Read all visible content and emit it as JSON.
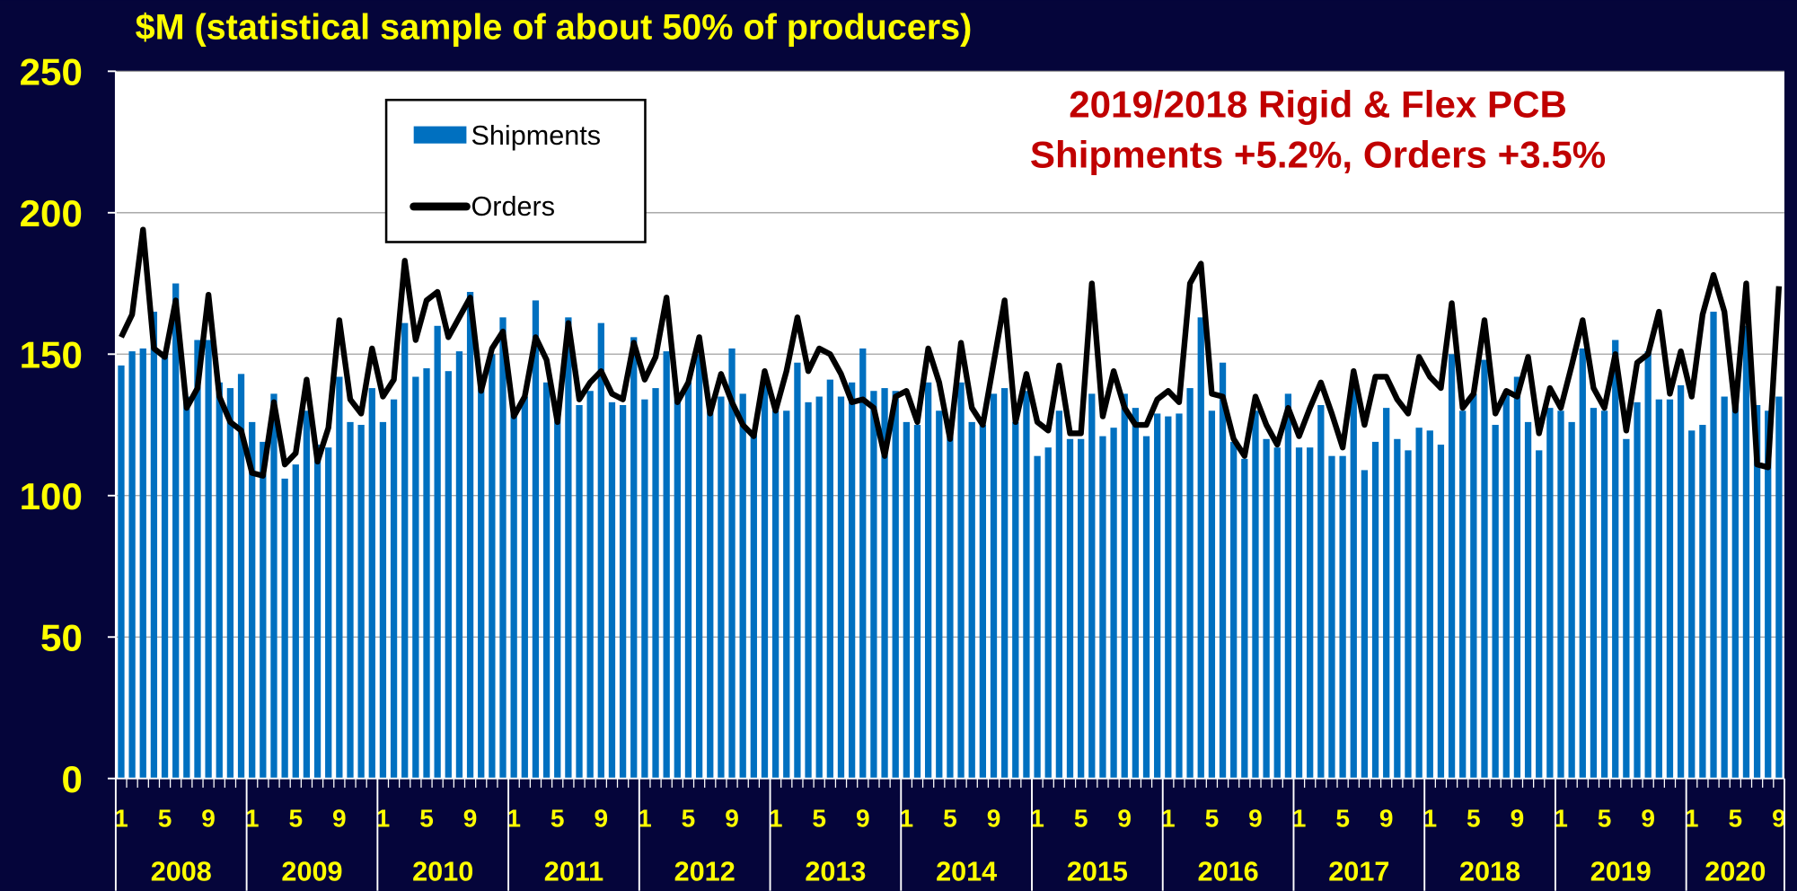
{
  "chart_data": {
    "type": "bar_line",
    "title": "$M (statistical sample of about 50% of producers)",
    "annotation": [
      "2019/2018 Rigid & Flex PCB",
      "Shipments +5.2%, Orders +3.5%"
    ],
    "categories": [
      "1",
      null,
      null,
      null,
      "5",
      null,
      null,
      null,
      "9",
      null,
      null,
      null,
      "1",
      null,
      null,
      null,
      "5",
      null,
      null,
      null,
      "9",
      null,
      null,
      null,
      "1",
      null,
      null,
      null,
      "5",
      null,
      null,
      null,
      "9",
      null,
      null,
      null,
      "1",
      null,
      null,
      null,
      "5",
      null,
      null,
      null,
      "9",
      null,
      null,
      null,
      "1",
      null,
      null,
      null,
      "5",
      null,
      null,
      null,
      "9",
      null,
      null,
      null,
      "1",
      null,
      null,
      null,
      "5",
      null,
      null,
      null,
      "9",
      null,
      null,
      null,
      "1",
      null,
      null,
      null,
      "5",
      null,
      null,
      null,
      "9",
      null,
      null,
      null,
      "1",
      null,
      null,
      null,
      "5",
      null,
      null,
      null,
      "9",
      null,
      null,
      null,
      "1",
      null,
      null,
      null,
      "5",
      null,
      null,
      null,
      "9",
      null,
      null,
      null,
      "1",
      null,
      null,
      null,
      "5",
      null,
      null,
      null,
      "9",
      null,
      null,
      null,
      "1",
      null,
      null,
      null,
      "5",
      null,
      null,
      null,
      "9",
      null,
      null,
      null,
      "1",
      null,
      null,
      null,
      "5",
      null,
      null,
      null,
      "9",
      null,
      null,
      null,
      "1",
      null,
      null,
      null,
      "5",
      null,
      null,
      null,
      "9"
    ],
    "years": [
      "2008",
      "2009",
      "2010",
      "2011",
      "2012",
      "2013",
      "2014",
      "2015",
      "2016",
      "2017",
      "2018",
      "2019",
      "2020"
    ],
    "series": [
      {
        "name": "Shipments",
        "kind": "bar",
        "color": "#0070c0",
        "values": [
          146,
          151,
          152,
          165,
          150,
          175,
          135,
          155,
          155,
          140,
          138,
          143,
          126,
          119,
          136,
          106,
          111,
          130,
          118,
          117,
          142,
          126,
          125,
          138,
          126,
          134,
          161,
          142,
          145,
          160,
          144,
          151,
          172,
          142,
          150,
          163,
          130,
          135,
          169,
          140,
          132,
          163,
          132,
          137,
          161,
          133,
          132,
          156,
          134,
          138,
          151,
          134,
          140,
          150,
          130,
          135,
          152,
          136,
          123,
          140,
          130,
          130,
          147,
          133,
          135,
          141,
          135,
          140,
          152,
          137,
          138,
          137,
          126,
          125,
          140,
          130,
          122,
          140,
          126,
          125,
          136,
          138,
          126,
          137,
          114,
          117,
          130,
          120,
          120,
          136,
          121,
          124,
          136,
          131,
          121,
          129,
          128,
          129,
          138,
          163,
          130,
          147,
          119,
          113,
          130,
          120,
          117,
          136,
          117,
          117,
          132,
          114,
          114,
          138,
          109,
          119,
          131,
          120,
          116,
          124,
          123,
          118,
          150,
          130,
          136,
          148,
          125,
          136,
          142,
          126,
          116,
          131,
          130,
          126,
          152,
          131,
          130,
          155,
          120,
          133,
          151,
          134,
          134,
          139,
          123,
          125,
          165,
          135,
          132,
          160,
          132,
          130,
          135
        ]
      },
      {
        "name": "Orders",
        "kind": "line",
        "color": "#000000",
        "values": [
          156,
          164,
          194,
          152,
          149,
          169,
          131,
          138,
          171,
          135,
          126,
          123,
          108,
          107,
          133,
          111,
          115,
          141,
          112,
          124,
          162,
          134,
          129,
          152,
          135,
          141,
          183,
          155,
          169,
          172,
          156,
          163,
          170,
          137,
          152,
          158,
          128,
          135,
          156,
          148,
          126,
          161,
          134,
          140,
          144,
          136,
          134,
          154,
          141,
          149,
          170,
          133,
          140,
          156,
          129,
          143,
          133,
          125,
          121,
          144,
          130,
          144,
          163,
          144,
          152,
          150,
          143,
          133,
          134,
          131,
          114,
          135,
          137,
          126,
          152,
          140,
          120,
          154,
          131,
          125,
          147,
          169,
          126,
          143,
          126,
          123,
          146,
          122,
          122,
          175,
          128,
          144,
          131,
          125,
          125,
          134,
          137,
          133,
          175,
          182,
          136,
          135,
          120,
          114,
          135,
          125,
          118,
          131,
          121,
          131,
          140,
          129,
          117,
          144,
          125,
          142,
          142,
          134,
          129,
          149,
          142,
          138,
          168,
          131,
          136,
          162,
          129,
          137,
          135,
          149,
          122,
          138,
          131,
          146,
          162,
          138,
          131,
          150,
          123,
          147,
          150,
          165,
          136,
          151,
          135,
          164,
          178,
          165,
          130,
          175,
          111,
          110,
          174
        ]
      }
    ],
    "ylim": [
      0,
      250
    ],
    "yticks": [
      0,
      50,
      100,
      150,
      200,
      250
    ],
    "grid": true
  }
}
